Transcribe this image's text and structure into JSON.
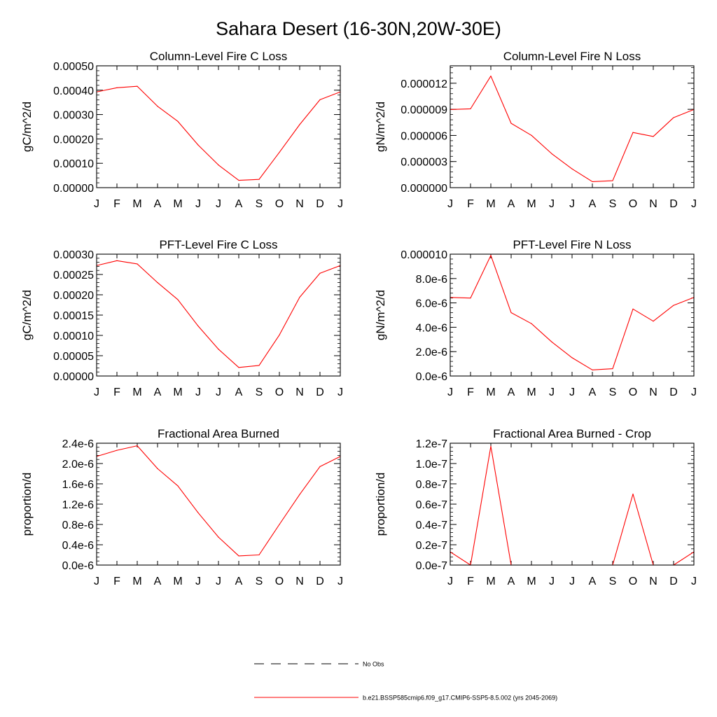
{
  "title": "Sahara Desert (16-30N,20W-30E)",
  "legend": [
    {
      "label": "No Obs",
      "style": "dashed",
      "color": "#000000"
    },
    {
      "label": "b.e21.BSSP585cmip6.f09_g17.CMIP6-SSP5-8.5.002 (yrs 2045-2069)",
      "style": "solid",
      "color": "#ff0000"
    }
  ],
  "chart_data": [
    {
      "type": "line",
      "title": "Column-Level Fire C Loss",
      "ylabel": "gC/m^2/d",
      "categories": [
        "J",
        "F",
        "M",
        "A",
        "M",
        "J",
        "J",
        "A",
        "S",
        "O",
        "N",
        "D",
        "J"
      ],
      "ylim": [
        0,
        0.0005
      ],
      "yticks": [
        "0.00000",
        "0.00010",
        "0.00020",
        "0.00030",
        "0.00040",
        "0.00050"
      ],
      "ytick_values": [
        0,
        0.0001,
        0.0002,
        0.0003,
        0.0004,
        0.0005
      ],
      "series": [
        {
          "color": "#ff0000",
          "values": [
            0.000393,
            0.00041,
            0.000416,
            0.000334,
            0.000272,
            0.000175,
            9.3e-05,
            3e-05,
            3.4e-05,
            0.000145,
            0.000259,
            0.000361,
            0.000393
          ]
        }
      ]
    },
    {
      "type": "line",
      "title": "Column-Level Fire N Loss",
      "ylabel": "gN/m^2/d",
      "categories": [
        "J",
        "F",
        "M",
        "A",
        "M",
        "J",
        "J",
        "A",
        "S",
        "O",
        "N",
        "D",
        "J"
      ],
      "ylim": [
        0,
        1.4e-05
      ],
      "yticks": [
        "0.000000",
        "0.000003",
        "0.000006",
        "0.000009",
        "0.000012"
      ],
      "ytick_values": [
        0,
        3e-06,
        6e-06,
        9e-06,
        1.2e-05
      ],
      "series": [
        {
          "color": "#ff0000",
          "values": [
            8.98e-06,
            9.06e-06,
            1.283e-05,
            7.39e-06,
            6.01e-06,
            3.9e-06,
            2.16e-06,
            6.9e-07,
            8e-07,
            6.34e-06,
            5.88e-06,
            8.05e-06,
            8.98e-06
          ]
        }
      ]
    },
    {
      "type": "line",
      "title": "PFT-Level Fire C Loss",
      "ylabel": "gC/m^2/d",
      "categories": [
        "J",
        "F",
        "M",
        "A",
        "M",
        "J",
        "J",
        "A",
        "S",
        "O",
        "N",
        "D",
        "J"
      ],
      "ylim": [
        0,
        0.0003
      ],
      "yticks": [
        "0.00000",
        "0.00005",
        "0.00010",
        "0.00015",
        "0.00020",
        "0.00025",
        "0.00030"
      ],
      "ytick_values": [
        0,
        5e-05,
        0.0001,
        0.00015,
        0.0002,
        0.00025,
        0.0003
      ],
      "series": [
        {
          "color": "#ff0000",
          "values": [
            0.000272,
            0.000284,
            0.000276,
            0.00023,
            0.000188,
            0.000123,
            6.6e-05,
            2.1e-05,
            2.6e-05,
            0.000101,
            0.000194,
            0.000253,
            0.000272
          ]
        }
      ]
    },
    {
      "type": "line",
      "title": "PFT-Level Fire N Loss",
      "ylabel": "gN/m^2/d",
      "categories": [
        "J",
        "F",
        "M",
        "A",
        "M",
        "J",
        "J",
        "A",
        "S",
        "O",
        "N",
        "D",
        "J"
      ],
      "ylim": [
        0,
        1e-05
      ],
      "yticks": [
        "0.0e-6",
        "2.0e-6",
        "4.0e-6",
        "6.0e-6",
        "8.0e-6",
        "0.000010"
      ],
      "ytick_values": [
        0,
        2e-06,
        4e-06,
        6e-06,
        8e-06,
        1e-05
      ],
      "series": [
        {
          "color": "#ff0000",
          "values": [
            6.45e-06,
            6.4e-06,
            9.9e-06,
            5.2e-06,
            4.3e-06,
            2.8e-06,
            1.5e-06,
            5e-07,
            6e-07,
            5.5e-06,
            4.5e-06,
            5.8e-06,
            6.45e-06
          ]
        }
      ]
    },
    {
      "type": "line",
      "title": "Fractional Area Burned",
      "ylabel": "proportion/d",
      "categories": [
        "J",
        "F",
        "M",
        "A",
        "M",
        "J",
        "J",
        "A",
        "S",
        "O",
        "N",
        "D",
        "J"
      ],
      "ylim": [
        0,
        2.4e-06
      ],
      "yticks": [
        "0.0e-6",
        "0.4e-6",
        "0.8e-6",
        "1.2e-6",
        "1.6e-6",
        "2.0e-6",
        "2.4e-6"
      ],
      "ytick_values": [
        0,
        4e-07,
        8e-07,
        1.2e-06,
        1.6e-06,
        2e-06,
        2.4e-06
      ],
      "series": [
        {
          "color": "#ff0000",
          "values": [
            2.14e-06,
            2.26e-06,
            2.35e-06,
            1.9e-06,
            1.56e-06,
            1.03e-06,
            5.5e-07,
            1.8e-07,
            2e-07,
            8e-07,
            1.39e-06,
            1.94e-06,
            2.14e-06
          ]
        }
      ]
    },
    {
      "type": "line",
      "title": "Fractional Area Burned - Crop",
      "ylabel": "proportion/d",
      "categories": [
        "J",
        "F",
        "M",
        "A",
        "M",
        "J",
        "J",
        "A",
        "S",
        "O",
        "N",
        "D",
        "J"
      ],
      "ylim": [
        0,
        1.2e-07
      ],
      "yticks": [
        "0.0e-7",
        "0.2e-7",
        "0.4e-7",
        "0.6e-7",
        "0.8e-7",
        "1.0e-7",
        "1.2e-7"
      ],
      "ytick_values": [
        0,
        2e-08,
        4e-08,
        6e-08,
        8e-08,
        1e-07,
        1.2e-07
      ],
      "series": [
        {
          "color": "#ff0000",
          "values": [
            1.3e-08,
            0,
            1.17e-07,
            0,
            0,
            0,
            0,
            0,
            0,
            7e-08,
            0,
            0,
            1.3e-08
          ]
        }
      ]
    }
  ]
}
